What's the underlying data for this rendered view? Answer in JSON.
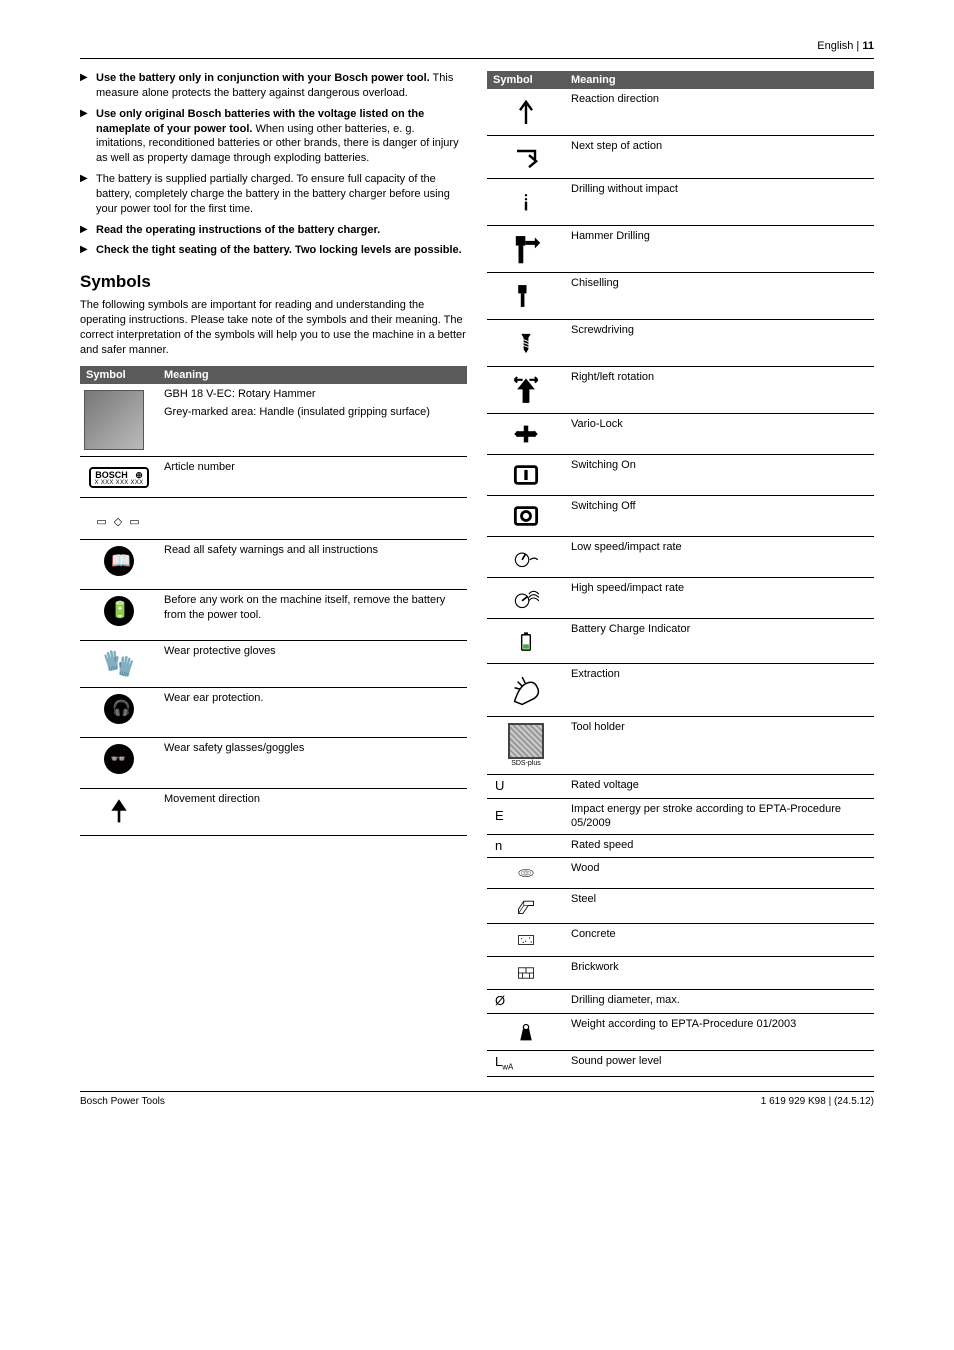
{
  "header": {
    "lang": "English",
    "sep": " | ",
    "page": "11"
  },
  "bullets": [
    {
      "bold": "Use the battery only in conjunction with your Bosch power tool.",
      "rest": " This measure alone protects the battery against dangerous overload."
    },
    {
      "bold": "Use only original Bosch batteries with the voltage listed on the nameplate of your power tool.",
      "rest": " When using other batteries, e. g. imitations, reconditioned batteries or other brands, there is danger of injury as well as property damage through exploding batteries."
    },
    {
      "bold": "",
      "rest": "The battery is supplied partially charged. To ensure full capacity of the battery, completely charge the battery in the battery charger before using your power tool for the first time."
    },
    {
      "bold": "Read the operating instructions of the battery charger.",
      "rest": ""
    },
    {
      "bold": "Check the tight seating of the battery. Two locking levels are possible.",
      "rest": ""
    }
  ],
  "symbols_heading": "Symbols",
  "symbols_intro": "The following symbols are important for reading and understanding the operating instructions. Please take note of the symbols and their meaning. The correct interpretation of the symbols will help you to use the machine in a better and safer manner.",
  "table_headers": {
    "symbol": "Symbol",
    "meaning": "Meaning"
  },
  "left_rows": [
    {
      "icon": "drill",
      "text1": "GBH 18 V-EC: Rotary Hammer",
      "text2": "Grey-marked area: Handle (insulated gripping surface)"
    },
    {
      "icon": "bosch",
      "text1": "Article number"
    },
    {
      "icon": "shapes",
      "text1": ""
    },
    {
      "icon": "read",
      "text1": "Read all safety warnings and all instructions"
    },
    {
      "icon": "battery-out",
      "text1": "Before any work on the machine itself, remove the battery from the power tool."
    },
    {
      "icon": "gloves",
      "text1": "Wear protective gloves"
    },
    {
      "icon": "ear",
      "text1": "Wear ear protection."
    },
    {
      "icon": "goggles",
      "text1": "Wear safety glasses/goggles"
    },
    {
      "icon": "arrow-up",
      "text1": "Movement direction"
    }
  ],
  "right_rows": [
    {
      "icon": "reaction",
      "text": "Reaction direction"
    },
    {
      "icon": "next-step",
      "text": "Next step of action"
    },
    {
      "icon": "drill-noimpact",
      "text": "Drilling without impact"
    },
    {
      "icon": "hammer-drill",
      "text": "Hammer Drilling"
    },
    {
      "icon": "chisel",
      "text": "Chiselling"
    },
    {
      "icon": "screw",
      "text": "Screwdriving"
    },
    {
      "icon": "rl-rot",
      "text": "Right/left rotation"
    },
    {
      "icon": "vario",
      "text": "Vario-Lock"
    },
    {
      "icon": "switch-on",
      "text": "Switching On"
    },
    {
      "icon": "switch-off",
      "text": "Switching Off"
    },
    {
      "icon": "low-speed",
      "text": "Low speed/impact rate"
    },
    {
      "icon": "high-speed",
      "text": "High speed/impact rate"
    },
    {
      "icon": "batt-ind",
      "text": "Battery Charge Indicator"
    },
    {
      "icon": "extraction",
      "text": "Extraction"
    },
    {
      "icon": "toolholder",
      "text": "Tool holder"
    },
    {
      "sym": "U",
      "text": "Rated voltage"
    },
    {
      "sym": "E",
      "text": "Impact energy per stroke according to EPTA-Procedure 05/2009"
    },
    {
      "sym": "n",
      "text": "Rated speed"
    },
    {
      "icon": "wood",
      "text": "Wood"
    },
    {
      "icon": "steel",
      "text": "Steel"
    },
    {
      "icon": "concrete",
      "text": "Concrete"
    },
    {
      "icon": "brick",
      "text": "Brickwork"
    },
    {
      "sym": "Ø",
      "text": "Drilling diameter, max."
    },
    {
      "icon": "weight",
      "text": "Weight according to EPTA-Procedure 01/2003"
    },
    {
      "sym": "LwA",
      "text": "Sound power level",
      "sub": true
    }
  ],
  "footer": {
    "left": "Bosch Power Tools",
    "right": "1 619 929 K98 | (24.5.12)"
  }
}
